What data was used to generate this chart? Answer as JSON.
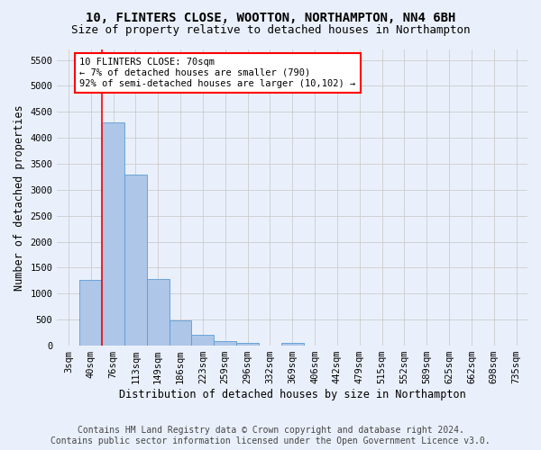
{
  "title_line1": "10, FLINTERS CLOSE, WOOTTON, NORTHAMPTON, NN4 6BH",
  "title_line2": "Size of property relative to detached houses in Northampton",
  "xlabel": "Distribution of detached houses by size in Northampton",
  "ylabel": "Number of detached properties",
  "footer_line1": "Contains HM Land Registry data © Crown copyright and database right 2024.",
  "footer_line2": "Contains public sector information licensed under the Open Government Licence v3.0.",
  "bar_labels": [
    "3sqm",
    "40sqm",
    "76sqm",
    "113sqm",
    "149sqm",
    "186sqm",
    "223sqm",
    "259sqm",
    "296sqm",
    "332sqm",
    "369sqm",
    "406sqm",
    "442sqm",
    "479sqm",
    "515sqm",
    "552sqm",
    "589sqm",
    "625sqm",
    "662sqm",
    "698sqm",
    "735sqm"
  ],
  "bar_values": [
    0,
    1270,
    4300,
    3300,
    1280,
    490,
    215,
    85,
    60,
    0,
    55,
    0,
    0,
    0,
    0,
    0,
    0,
    0,
    0,
    0,
    0
  ],
  "bar_color": "#aec6e8",
  "bar_edge_color": "#5b9bd5",
  "vline_index": 1.5,
  "vline_color": "red",
  "annotation_text": "10 FLINTERS CLOSE: 70sqm\n← 7% of detached houses are smaller (790)\n92% of semi-detached houses are larger (10,102) →",
  "annotation_box_color": "white",
  "annotation_box_edge_color": "red",
  "ylim_max": 5700,
  "yticks": [
    0,
    500,
    1000,
    1500,
    2000,
    2500,
    3000,
    3500,
    4000,
    4500,
    5000,
    5500
  ],
  "grid_color": "#cccccc",
  "background_color": "#eaf0fb",
  "title_fontsize": 10,
  "subtitle_fontsize": 9,
  "axis_label_fontsize": 8.5,
  "tick_fontsize": 7.5,
  "footer_fontsize": 7
}
